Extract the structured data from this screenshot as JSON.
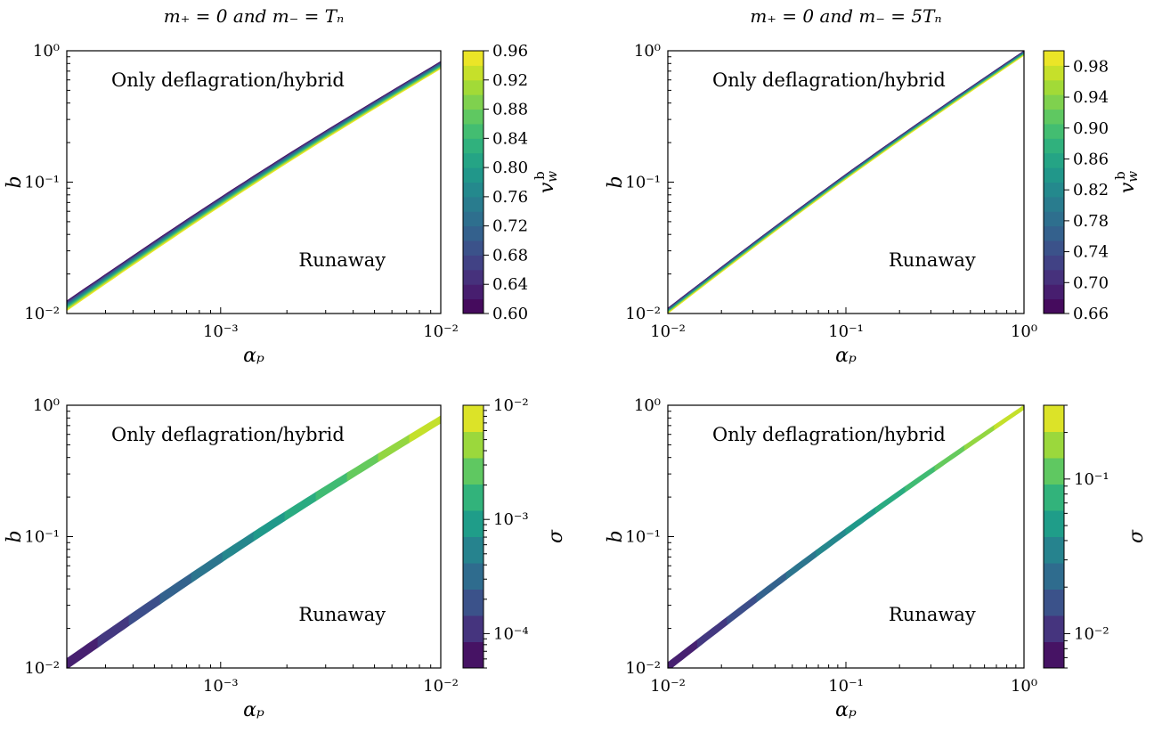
{
  "chart_data": [
    {
      "type": "area",
      "title": "m₊ = 0 and m₋ = Tₙ",
      "xlabel": "αₚ",
      "ylabel": "b",
      "xscale": "log",
      "yscale": "log",
      "xlim": [
        0.0002,
        0.01
      ],
      "ylim": [
        0.01,
        1
      ],
      "xticks": [
        {
          "value": 0.001,
          "label": "10⁻³"
        },
        {
          "value": 0.01,
          "label": "10⁻²"
        }
      ],
      "yticks": [
        {
          "value": 0.01,
          "label": "10⁻²"
        },
        {
          "value": 0.1,
          "label": "10⁻¹"
        },
        {
          "value": 1,
          "label": "10⁰"
        }
      ],
      "annotations": [
        {
          "text": "Only deflagration/hybrid",
          "region": "upper-left"
        },
        {
          "text": "Runaway",
          "region": "lower-right"
        }
      ],
      "colorbar": {
        "label": "v_w^b",
        "scale": "linear",
        "range": [
          0.6,
          0.96
        ],
        "ticks": [
          "0.96",
          "0.92",
          "0.88",
          "0.84",
          "0.80",
          "0.76",
          "0.72",
          "0.68",
          "0.64",
          "0.60"
        ]
      },
      "band": {
        "start": {
          "x": 0.0002,
          "y_upper": 0.0125,
          "y_lower": 0.0105
        },
        "end": {
          "x": 0.01,
          "y_upper": 0.83,
          "y_lower": 0.73
        },
        "color_along": "perpendicular"
      }
    },
    {
      "type": "area",
      "title": "m₊ = 0 and m₋ = 5Tₙ",
      "xlabel": "αₚ",
      "ylabel": "b",
      "xscale": "log",
      "yscale": "log",
      "xlim": [
        0.01,
        1
      ],
      "ylim": [
        0.01,
        1
      ],
      "xticks": [
        {
          "value": 0.01,
          "label": "10⁻²"
        },
        {
          "value": 0.1,
          "label": "10⁻¹"
        },
        {
          "value": 1,
          "label": "10⁰"
        }
      ],
      "yticks": [
        {
          "value": 0.01,
          "label": "10⁻²"
        },
        {
          "value": 0.1,
          "label": "10⁻¹"
        },
        {
          "value": 1,
          "label": "10⁰"
        }
      ],
      "annotations": [
        {
          "text": "Only deflagration/hybrid",
          "region": "upper-left"
        },
        {
          "text": "Runaway",
          "region": "lower-right"
        }
      ],
      "colorbar": {
        "label": "v_w^b",
        "scale": "linear",
        "range": [
          0.66,
          1.0
        ],
        "ticks": [
          "0.98",
          "0.94",
          "0.90",
          "0.86",
          "0.82",
          "0.78",
          "0.74",
          "0.70",
          "0.66"
        ]
      },
      "band": {
        "start": {
          "x": 0.01,
          "y_upper": 0.011,
          "y_lower": 0.01
        },
        "end": {
          "x": 1,
          "y_upper": 1.0,
          "y_lower": 0.92
        },
        "color_along": "perpendicular"
      }
    },
    {
      "type": "area",
      "title": "",
      "xlabel": "αₚ",
      "ylabel": "b",
      "xscale": "log",
      "yscale": "log",
      "xlim": [
        0.0002,
        0.01
      ],
      "ylim": [
        0.01,
        1
      ],
      "xticks": [
        {
          "value": 0.001,
          "label": "10⁻³"
        },
        {
          "value": 0.01,
          "label": "10⁻²"
        }
      ],
      "yticks": [
        {
          "value": 0.01,
          "label": "10⁻²"
        },
        {
          "value": 0.1,
          "label": "10⁻¹"
        },
        {
          "value": 1,
          "label": "10⁰"
        }
      ],
      "annotations": [
        {
          "text": "Only deflagration/hybrid",
          "region": "upper-left"
        },
        {
          "text": "Runaway",
          "region": "lower-right"
        }
      ],
      "colorbar": {
        "label": "σ",
        "scale": "log",
        "range": [
          5e-05,
          0.01
        ],
        "ticks": [
          "10⁻²",
          "10⁻³",
          "10⁻⁴"
        ]
      },
      "band": {
        "start": {
          "x": 0.0002,
          "y_upper": 0.0118,
          "y_lower": 0.0098
        },
        "end": {
          "x": 0.01,
          "y_upper": 0.83,
          "y_lower": 0.73
        },
        "color_along": "length"
      }
    },
    {
      "type": "area",
      "title": "",
      "xlabel": "αₚ",
      "ylabel": "b",
      "xscale": "log",
      "yscale": "log",
      "xlim": [
        0.01,
        1
      ],
      "ylim": [
        0.01,
        1
      ],
      "xticks": [
        {
          "value": 0.01,
          "label": "10⁻²"
        },
        {
          "value": 0.1,
          "label": "10⁻¹"
        },
        {
          "value": 1,
          "label": "10⁰"
        }
      ],
      "yticks": [
        {
          "value": 0.01,
          "label": "10⁻²"
        },
        {
          "value": 0.1,
          "label": "10⁻¹"
        },
        {
          "value": 1,
          "label": "10⁰"
        }
      ],
      "annotations": [
        {
          "text": "Only deflagration/hybrid",
          "region": "upper-left"
        },
        {
          "text": "Runaway",
          "region": "lower-right"
        }
      ],
      "colorbar": {
        "label": "σ",
        "scale": "log",
        "range": [
          0.006,
          0.3
        ],
        "ticks": [
          "10⁻¹",
          "10⁻²"
        ]
      },
      "band": {
        "start": {
          "x": 0.01,
          "y_upper": 0.011,
          "y_lower": 0.0095
        },
        "end": {
          "x": 1,
          "y_upper": 1.0,
          "y_lower": 0.93
        },
        "color_along": "length"
      }
    }
  ]
}
